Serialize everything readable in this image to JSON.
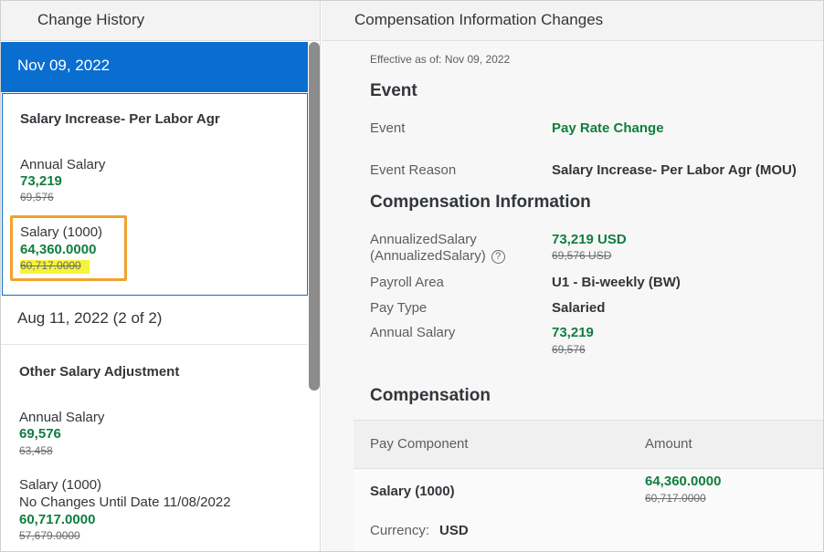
{
  "left": {
    "header": "Change History",
    "selected_date": "Nov 09, 2022",
    "card1": {
      "title": "Salary Increase- Per Labor Agr",
      "annual_salary_label": "Annual Salary",
      "annual_salary_new": "73,219",
      "annual_salary_old": "69,576",
      "salary_label": "Salary (1000)",
      "salary_new": "64,360.0000",
      "salary_old": "60,717.0000"
    },
    "second_date": "Aug 11, 2022 (2 of 2)",
    "card2": {
      "title": "Other Salary Adjustment",
      "annual_salary_label": "Annual Salary",
      "annual_salary_new": "69,576",
      "annual_salary_old": "63,458",
      "salary_label": "Salary (1000)",
      "salary_note": "No Changes Until Date 11/08/2022",
      "salary_new": "60,717.0000",
      "salary_old": "57,679.0000"
    }
  },
  "right": {
    "header": "Compensation Information Changes",
    "effective": "Effective as of: Nov 09, 2022",
    "event_section": "Event",
    "event_label": "Event",
    "event_value": "Pay Rate Change",
    "reason_label": "Event Reason",
    "reason_value": "Salary Increase- Per Labor Agr (MOU)",
    "comp_info_section": "Compensation Information",
    "annualized_label_1": "AnnualizedSalary",
    "annualized_label_2": "(AnnualizedSalary)",
    "help_glyph": "?",
    "annualized_new": "73,219 USD",
    "annualized_old": "69,576 USD",
    "payroll_label": "Payroll Area",
    "payroll_value": "U1 - Bi-weekly (BW)",
    "paytype_label": "Pay Type",
    "paytype_value": "Salaried",
    "annual_label": "Annual Salary",
    "annual_new": "73,219",
    "annual_old": "69,576",
    "comp_section": "Compensation",
    "table_headers": [
      "Pay Component",
      "Amount"
    ],
    "row_component": "Salary (1000)",
    "row_amount_new": "64,360.0000",
    "row_amount_old": "60,717.0000",
    "currency_label": "Currency:",
    "currency_value": "USD"
  },
  "colors": {
    "accent": "#0a6ed1",
    "positive": "#107e3e",
    "highlight_outline": "#f0a22e",
    "highlight_marker": "#f6f33b"
  }
}
